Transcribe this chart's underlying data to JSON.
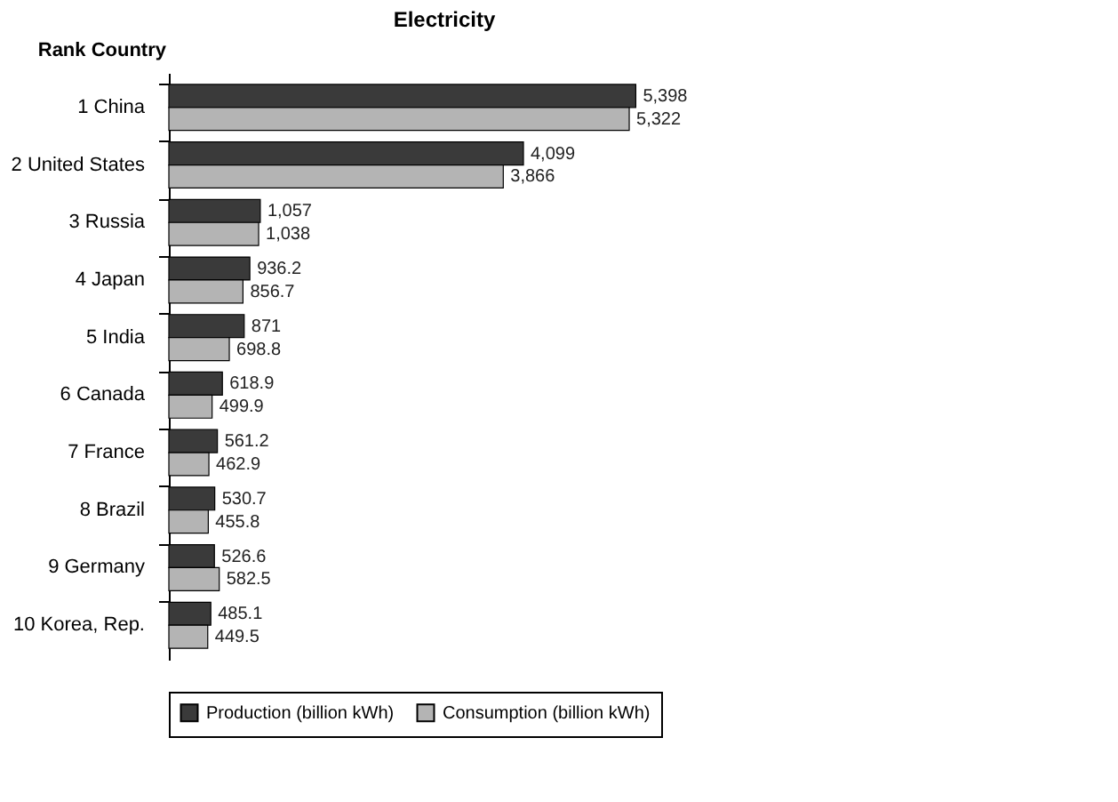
{
  "chart_data": {
    "type": "bar",
    "orientation": "horizontal",
    "title": "Electricity",
    "ylabel": "Rank Country",
    "legend": "bottom",
    "categories": [
      "1 China",
      "2 United States",
      "3 Russia",
      "4 Japan",
      "5 India",
      "6 Canada",
      "7 France",
      "8 Brazil",
      "9 Germany",
      "10 Korea, Rep."
    ],
    "series": [
      {
        "name": "Production (billion kWh)",
        "color": "#3a3a3a",
        "values": [
          5398,
          4099,
          1057,
          936.2,
          871,
          618.9,
          561.2,
          530.7,
          526.6,
          485.1
        ],
        "value_labels": [
          "5,398",
          "4,099",
          "1,057",
          "936.2",
          "871",
          "618.9",
          "561.2",
          "530.7",
          "526.6",
          "485.1"
        ]
      },
      {
        "name": "Consumption (billion kWh)",
        "color": "#b4b4b4",
        "values": [
          5322,
          3866,
          1038,
          856.7,
          698.8,
          499.9,
          462.9,
          455.8,
          582.5,
          449.5
        ],
        "value_labels": [
          "5,322",
          "3,866",
          "1,038",
          "856.7",
          "698.8",
          "499.9",
          "462.9",
          "455.8",
          "582.5",
          "449.5"
        ]
      }
    ]
  }
}
